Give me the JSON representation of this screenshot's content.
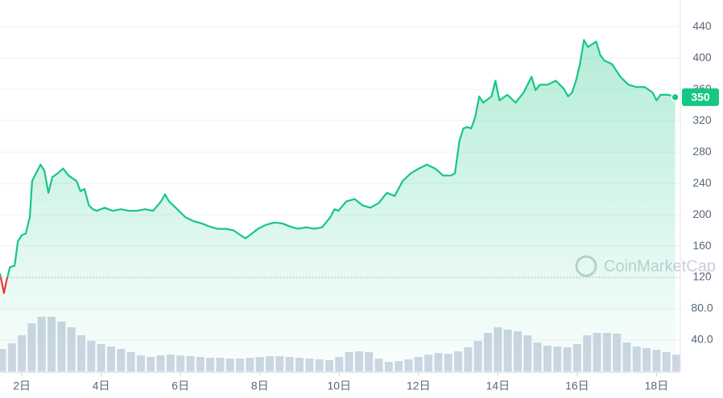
{
  "chart_data": {
    "type": "line",
    "watermark": "CoinMarketCap",
    "color": "#16c784",
    "down_color": "#ea3943",
    "reference_line": 120,
    "x": [
      1.45,
      1.51,
      1.55,
      1.61,
      1.7,
      1.82,
      1.9,
      2.0,
      2.1,
      2.2,
      2.26,
      2.36,
      2.47,
      2.57,
      2.67,
      2.77,
      2.91,
      3.04,
      3.18,
      3.38,
      3.48,
      3.58,
      3.69,
      3.79,
      3.89,
      4.09,
      4.29,
      4.5,
      4.7,
      4.9,
      5.11,
      5.31,
      5.51,
      5.61,
      5.71,
      5.92,
      6.12,
      6.32,
      6.53,
      6.73,
      6.93,
      7.14,
      7.34,
      7.54,
      7.64,
      7.75,
      7.95,
      8.15,
      8.36,
      8.56,
      8.76,
      8.96,
      9.17,
      9.37,
      9.57,
      9.78,
      9.88,
      9.98,
      10.18,
      10.39,
      10.59,
      10.79,
      11.0,
      11.2,
      11.4,
      11.6,
      11.81,
      12.01,
      12.21,
      12.42,
      12.62,
      12.82,
      12.92,
      13.03,
      13.13,
      13.23,
      13.33,
      13.43,
      13.53,
      13.63,
      13.84,
      13.94,
      14.04,
      14.24,
      14.45,
      14.65,
      14.85,
      14.95,
      15.06,
      15.26,
      15.46,
      15.66,
      15.77,
      15.87,
      15.97,
      16.07,
      16.17,
      16.27,
      16.48,
      16.58,
      16.68,
      16.88,
      17.09,
      17.19,
      17.29,
      17.49,
      17.7,
      17.9,
      18.0,
      18.1,
      18.3,
      18.47
    ],
    "values": [
      125,
      110,
      100,
      115,
      133,
      135,
      166,
      174,
      176,
      197,
      243,
      253,
      264,
      256,
      228,
      248,
      253,
      259,
      250,
      243,
      230,
      233,
      212,
      207,
      205,
      209,
      205,
      207,
      205,
      205,
      207,
      205,
      217,
      226,
      217,
      207,
      197,
      192,
      189,
      185,
      182,
      182,
      180,
      173,
      170,
      174,
      182,
      187,
      190,
      189,
      185,
      182,
      184,
      182,
      184,
      197,
      207,
      205,
      217,
      220,
      212,
      209,
      215,
      228,
      224,
      243,
      253,
      259,
      264,
      259,
      250,
      250,
      253,
      294,
      310,
      312,
      310,
      325,
      351,
      343,
      351,
      371,
      346,
      353,
      343,
      356,
      376,
      359,
      366,
      366,
      371,
      361,
      351,
      356,
      371,
      392,
      423,
      414,
      421,
      404,
      397,
      392,
      376,
      371,
      366,
      363,
      363,
      356,
      346,
      353,
      353,
      350
    ],
    "volume": {
      "color": "#cfd6e4",
      "x": [
        1.5,
        1.75,
        2.0,
        2.25,
        2.5,
        2.75,
        3.0,
        3.25,
        3.5,
        3.75,
        4.0,
        4.25,
        4.5,
        4.75,
        5.0,
        5.25,
        5.5,
        5.75,
        6.0,
        6.25,
        6.5,
        6.75,
        7.0,
        7.25,
        7.5,
        7.75,
        8.0,
        8.25,
        8.5,
        8.75,
        9.0,
        9.25,
        9.5,
        9.75,
        10.0,
        10.25,
        10.5,
        10.75,
        11.0,
        11.25,
        11.5,
        11.75,
        12.0,
        12.25,
        12.5,
        12.75,
        13.0,
        13.25,
        13.5,
        13.75,
        14.0,
        14.25,
        14.5,
        14.75,
        15.0,
        15.25,
        15.5,
        15.75,
        16.0,
        16.25,
        16.5,
        16.75,
        17.0,
        17.25,
        17.5,
        17.75,
        18.0,
        18.25,
        18.5
      ],
      "values": [
        28,
        35,
        45,
        60,
        68,
        68,
        62,
        55,
        45,
        38,
        34,
        31,
        28,
        24,
        20,
        18,
        20,
        21,
        20,
        19,
        18,
        17,
        17,
        16,
        16,
        17,
        18,
        19,
        19,
        18,
        17,
        16,
        15,
        14,
        18,
        24,
        25,
        24,
        16,
        12,
        13,
        15,
        18,
        21,
        23,
        22,
        25,
        30,
        38,
        48,
        55,
        52,
        50,
        45,
        36,
        32,
        31,
        30,
        34,
        45,
        48,
        48,
        47,
        36,
        31,
        29,
        27,
        24,
        21
      ],
      "y2lim": [
        0,
        100
      ]
    },
    "xlim": [
      1.45,
      18.6
    ],
    "xticks": [
      {
        "value": 2,
        "label": "2日"
      },
      {
        "value": 4,
        "label": "4日"
      },
      {
        "value": 6,
        "label": "6日"
      },
      {
        "value": 8,
        "label": "8日"
      },
      {
        "value": 10,
        "label": "10日"
      },
      {
        "value": 12,
        "label": "12日"
      },
      {
        "value": 14,
        "label": "14日"
      },
      {
        "value": 16,
        "label": "16日"
      },
      {
        "value": 18,
        "label": "18日"
      }
    ],
    "ylim": [
      0,
      474
    ],
    "yticks": [
      {
        "value": 40,
        "label": "40.0"
      },
      {
        "value": 80,
        "label": "80.0"
      },
      120,
      160,
      200,
      240,
      280,
      320,
      360,
      400,
      440
    ],
    "grid": true
  }
}
